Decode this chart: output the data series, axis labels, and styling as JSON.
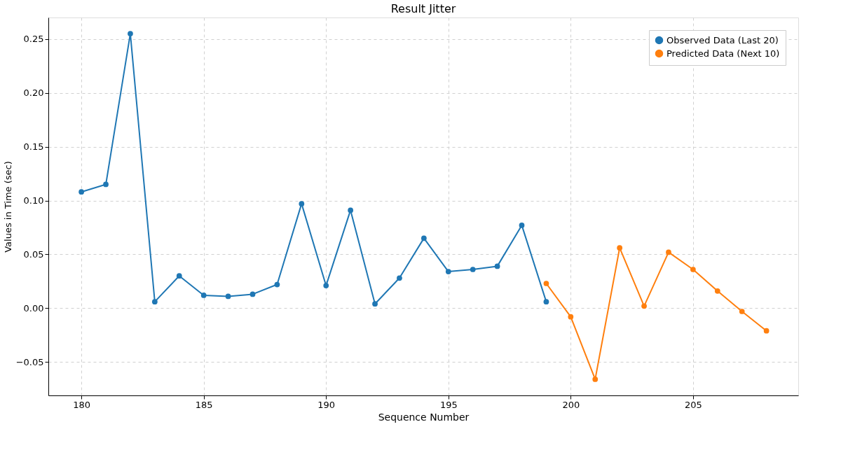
{
  "chart_data": {
    "type": "line",
    "title": "Result Jitter",
    "xlabel": "Sequence Number",
    "ylabel": "Values in Time (sec)",
    "xlim": [
      178.65,
      209.3
    ],
    "xticks": [
      180,
      185,
      190,
      195,
      200,
      205
    ],
    "ylim": [
      -0.081,
      0.27
    ],
    "yticks": [
      {
        "value": -0.05,
        "label": "−0.05"
      },
      {
        "value": 0,
        "label": "0.00"
      },
      {
        "value": 0.05,
        "label": "0.05"
      },
      {
        "value": 0.1,
        "label": "0.10"
      },
      {
        "value": 0.15,
        "label": "0.15"
      },
      {
        "value": 0.2,
        "label": "0.20"
      },
      {
        "value": 0.25,
        "label": "0.25"
      }
    ],
    "grid": true,
    "legend": "top right",
    "marker": "circle",
    "line_style": "solid",
    "series": [
      {
        "name": "Observed Data (Last 20)",
        "color": "#1f77b4",
        "x": [
          180,
          181,
          182,
          183,
          184,
          185,
          186,
          187,
          188,
          189,
          190,
          191,
          192,
          193,
          194,
          195,
          196,
          197,
          198,
          199
        ],
        "values": [
          0.108,
          0.115,
          0.255,
          0.006,
          0.03,
          0.012,
          0.011,
          0.013,
          0.022,
          0.097,
          0.021,
          0.091,
          0.004,
          0.028,
          0.065,
          0.034,
          0.036,
          0.039,
          0.077,
          0.006
        ]
      },
      {
        "name": "Predicted Data (Next 10)",
        "color": "#ff7f0e",
        "x": [
          199,
          200,
          201,
          202,
          203,
          204,
          205,
          206,
          207,
          208
        ],
        "values": [
          0.023,
          -0.008,
          -0.066,
          0.056,
          0.002,
          0.052,
          0.036,
          0.016,
          -0.003,
          -0.021
        ]
      }
    ]
  }
}
